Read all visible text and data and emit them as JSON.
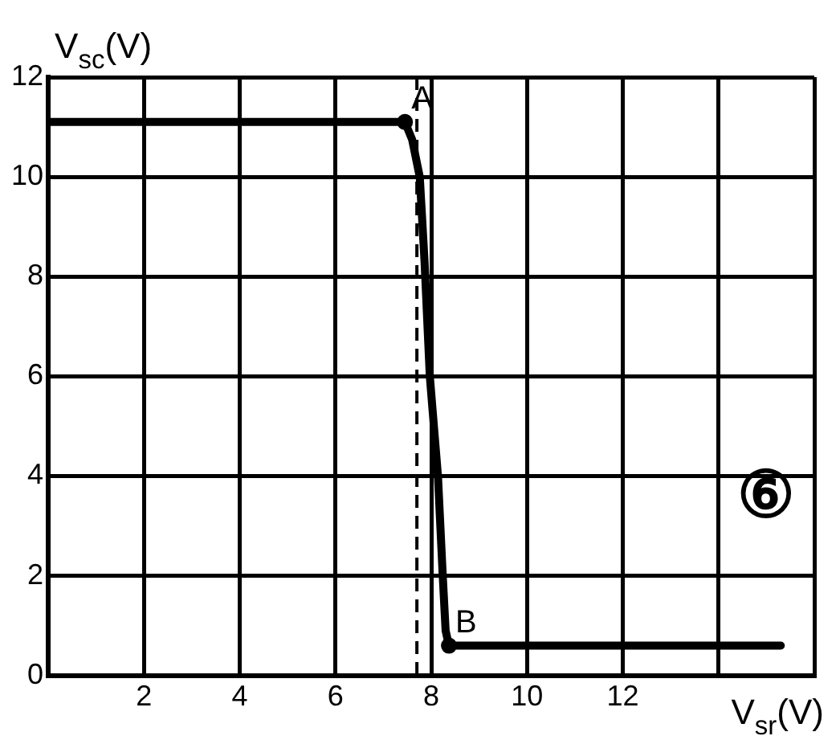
{
  "chart_data": {
    "type": "line",
    "xlabel": "V$_{sr}$(V)",
    "ylabel": "V$_{sc}$(V)",
    "x": [
      0,
      7.2,
      7.45,
      7.6,
      7.76,
      7.86,
      7.97,
      8.14,
      8.24,
      8.3,
      8.37,
      8.6,
      15.3
    ],
    "series": [
      {
        "color": "#000000",
        "values": [
          11.1,
          11.1,
          11.1,
          10.75,
          10,
          8.3,
          6,
          4,
          2,
          0.9,
          0.6,
          0.6,
          0.6
        ]
      }
    ],
    "xlim": [
      0,
      16
    ],
    "xticks": [
      2,
      4,
      6,
      8,
      10,
      12,
      {
        "value": 14,
        "label": null
      },
      {
        "value": 16,
        "label": null
      }
    ],
    "ylim": [
      0,
      12
    ],
    "yticks": [
      0,
      2,
      4,
      6,
      8,
      10,
      12
    ],
    "ref_lines": [
      {
        "axis": "x",
        "value": 7.7,
        "line_style": "dashed",
        "color": "#000000"
      }
    ],
    "annotations": [
      {
        "text": "A",
        "x": 7.45,
        "y": 11.1
      },
      {
        "text": "B",
        "x": 8.37,
        "y": 0.6
      },
      "⑥"
    ],
    "grid": true,
    "legend": false,
    "marker": "none",
    "line_style": "solid"
  }
}
